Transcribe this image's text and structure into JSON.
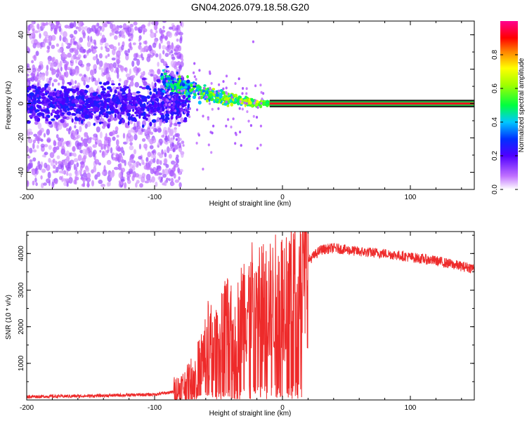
{
  "title": "GN04.2026.079.18.58.G20",
  "chart_data": [
    {
      "type": "heatmap",
      "xlabel": "Height of straight line (km)",
      "ylabel": "Frequency (Hz)",
      "xlim": [
        -200,
        150
      ],
      "ylim": [
        -50,
        48
      ],
      "xticks": [
        -200,
        -100,
        0,
        100
      ],
      "yticks": [
        -40,
        -20,
        0,
        20,
        40
      ],
      "colorbar": {
        "label": "Normalized spectral amplitude",
        "range": [
          0,
          1
        ],
        "ticks": [
          0.0,
          0.2,
          0.4,
          0.6,
          0.8
        ],
        "colors": [
          "#ffffff",
          "#a000ff",
          "#0000ff",
          "#00c8ff",
          "#00ff00",
          "#ffff00",
          "#ff8000",
          "#ff0000",
          "#ff0080"
        ]
      },
      "features": {
        "diffuse_region_x": [
          -200,
          -78
        ],
        "diffuse_centroid_hz": 0,
        "diffuse_spread_hz": 48,
        "transition_x": [
          -95,
          -10
        ],
        "transition_freq_hz": [
          14,
          0
        ],
        "steady_line_x": [
          0,
          150
        ],
        "steady_line_freq_hz": 0,
        "steady_line_amplitude": 0.92
      }
    },
    {
      "type": "line",
      "xlabel": "Height of straight line (km)",
      "ylabel": "SNR (10 * v/v)",
      "xlim": [
        -200,
        150
      ],
      "ylim": [
        0,
        4600
      ],
      "xticks": [
        -200,
        -100,
        0,
        100
      ],
      "yticks": [
        1000,
        2000,
        3000,
        4000
      ],
      "color": "#ff2020",
      "series": [
        {
          "name": "SNR",
          "x": [
            -200,
            -150,
            -100,
            -85,
            -75,
            -65,
            -58,
            -52,
            -45,
            -38,
            -30,
            -20,
            -10,
            0,
            10,
            20,
            30,
            40,
            60,
            80,
            100,
            120,
            140,
            150
          ],
          "values": [
            90,
            110,
            150,
            220,
            400,
            900,
            1600,
            1400,
            2100,
            1700,
            2500,
            2700,
            2600,
            2900,
            3400,
            3800,
            4100,
            4150,
            4050,
            4000,
            3900,
            3800,
            3650,
            3600
          ]
        }
      ]
    }
  ]
}
